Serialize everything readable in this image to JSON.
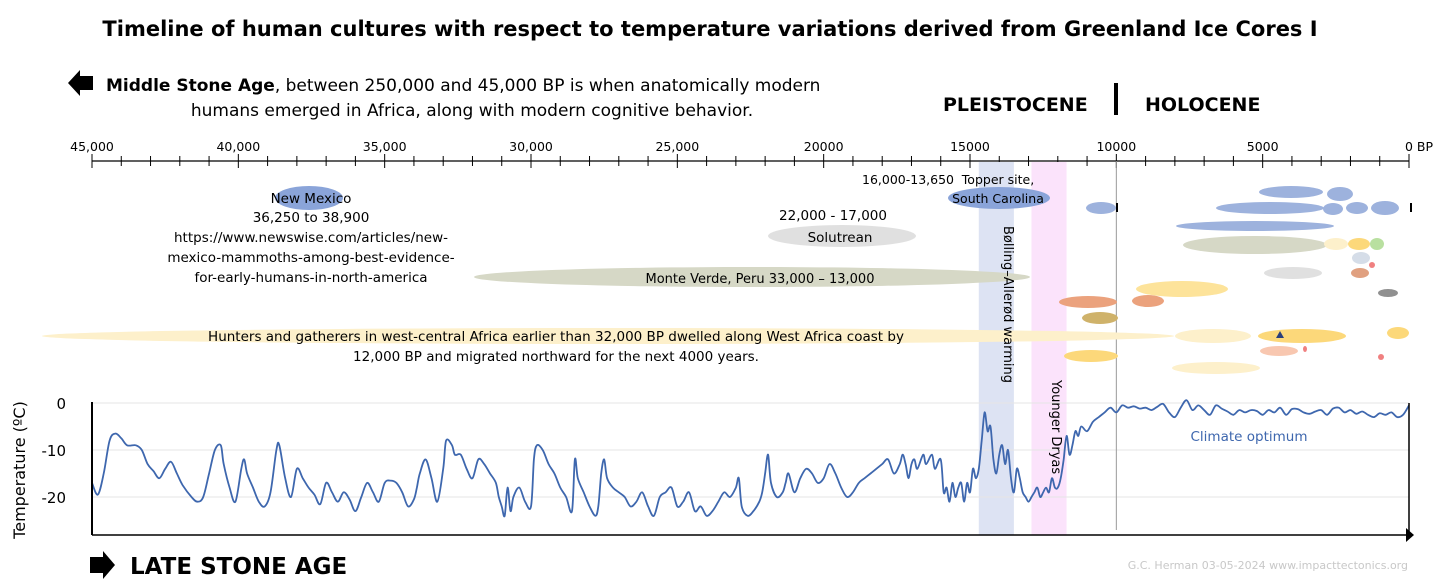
{
  "title": "Timeline of human cultures with respect to temperature variations derived from Greenland Ice Cores I",
  "middle_stone_age": {
    "bold": "Middle Stone Age",
    "rest_line1": ", between 250,000 and 45,000 BP is when anatomically modern",
    "line2": "humans emerged in Africa, along with modern cognitive behavior."
  },
  "epochs": {
    "pleistocene": "PLEISTOCENE",
    "holocene": "HOLOCENE"
  },
  "late_stone_age": "LATE STONE AGE",
  "credit": "G.C. Herman 03-05-2024 www.impacttectonics.org",
  "labels": {
    "new_mexico_1": "New Mexico",
    "new_mexico_2": "36,250 to 38,900",
    "new_mexico_3": "https://www.newswise.com/articles/new-",
    "new_mexico_4": "mexico-mammoths-among-best-evidence-",
    "new_mexico_5": "for-early-humans-in-north-america",
    "topper_range": "16,000-13,650",
    "topper_1": "Topper site,",
    "topper_2": "South Carolina",
    "solutrean_range": "22,000 - 17,000",
    "solutrean": "Solutrean",
    "monte_verde": "Monte Verde, Peru 33,000 – 13,000",
    "hunters_1": "Hunters and gatherers in west-central Africa earlier than 32,000 BP dwelled along West Africa coast by",
    "hunters_2": "12,000 BP and migrated northward for the next 4000 years.",
    "bolling": "Bølling–Allerød warming",
    "younger_dryas": "Younger Dryas",
    "climate_optimum": "Climate optimum"
  },
  "chart_data": {
    "type": "line",
    "title": "Timeline of human cultures with respect to temperature variations derived from Greenland Ice Cores I",
    "xlabel": "",
    "ylabel": "Temperature (ºC)",
    "x_unit": "years BP",
    "x_axis": {
      "range": [
        45000,
        0
      ],
      "ticks": [
        {
          "value": 45000,
          "label": "45,000"
        },
        {
          "value": 40000,
          "label": "40,000"
        },
        {
          "value": 35000,
          "label": "35,000"
        },
        {
          "value": 30000,
          "label": "30,000"
        },
        {
          "value": 25000,
          "label": "25,000"
        },
        {
          "value": 20000,
          "label": "20000"
        },
        {
          "value": 15000,
          "label": "15000"
        },
        {
          "value": 10000,
          "label": "10000"
        },
        {
          "value": 5000,
          "label": "5000"
        },
        {
          "value": 0,
          "label": "0 BP"
        }
      ],
      "minor_step": 1000
    },
    "y_axis": {
      "range": [
        -28,
        2
      ],
      "ticks": [
        {
          "value": 0,
          "label": "0"
        },
        {
          "value": -10,
          "label": "-10"
        },
        {
          "value": -20,
          "label": "-20"
        }
      ]
    },
    "grid": true,
    "bands": [
      {
        "name": "Bølling–Allerød warming",
        "from": 14700,
        "to": 13500,
        "color": "#dde3f3"
      },
      {
        "name": "Younger Dryas",
        "from": 12900,
        "to": 11700,
        "color": "#fbe3fb"
      }
    ],
    "boundary": {
      "value": 10000,
      "from": "PLEISTOCENE",
      "to": "HOLOCENE"
    },
    "series": [
      {
        "color": "#3e67ae",
        "points": [
          [
            45000,
            -17
          ],
          [
            44800,
            -19.5
          ],
          [
            44600,
            -15
          ],
          [
            44400,
            -8
          ],
          [
            44200,
            -6.5
          ],
          [
            44000,
            -7.5
          ],
          [
            43800,
            -9
          ],
          [
            43500,
            -9
          ],
          [
            43300,
            -10
          ],
          [
            43100,
            -13
          ],
          [
            42900,
            -14.5
          ],
          [
            42700,
            -16
          ],
          [
            42500,
            -14
          ],
          [
            42300,
            -12.5
          ],
          [
            42100,
            -15
          ],
          [
            41900,
            -17.5
          ],
          [
            41600,
            -20
          ],
          [
            41400,
            -21
          ],
          [
            41200,
            -20
          ],
          [
            41000,
            -15
          ],
          [
            40800,
            -10
          ],
          [
            40600,
            -9
          ],
          [
            40500,
            -13
          ],
          [
            40300,
            -18
          ],
          [
            40100,
            -21
          ],
          [
            39900,
            -14
          ],
          [
            39800,
            -12
          ],
          [
            39700,
            -15
          ],
          [
            39500,
            -18
          ],
          [
            39300,
            -21
          ],
          [
            39100,
            -22
          ],
          [
            38900,
            -19
          ],
          [
            38700,
            -10
          ],
          [
            38600,
            -9
          ],
          [
            38400,
            -16
          ],
          [
            38200,
            -20
          ],
          [
            38000,
            -14
          ],
          [
            37800,
            -16
          ],
          [
            37600,
            -18
          ],
          [
            37400,
            -19.5
          ],
          [
            37200,
            -21.5
          ],
          [
            37000,
            -17
          ],
          [
            36800,
            -19
          ],
          [
            36600,
            -21
          ],
          [
            36400,
            -19
          ],
          [
            36200,
            -20.5
          ],
          [
            36000,
            -23
          ],
          [
            35800,
            -20
          ],
          [
            35600,
            -17
          ],
          [
            35400,
            -19
          ],
          [
            35200,
            -21
          ],
          [
            35000,
            -17
          ],
          [
            34800,
            -16.5
          ],
          [
            34600,
            -17
          ],
          [
            34400,
            -19
          ],
          [
            34200,
            -22
          ],
          [
            34000,
            -20.5
          ],
          [
            33900,
            -18
          ],
          [
            33800,
            -15
          ],
          [
            33600,
            -12
          ],
          [
            33400,
            -16
          ],
          [
            33200,
            -21
          ],
          [
            33000,
            -14
          ],
          [
            32900,
            -8
          ],
          [
            32700,
            -9
          ],
          [
            32600,
            -11
          ],
          [
            32400,
            -11
          ],
          [
            32200,
            -14
          ],
          [
            32000,
            -16
          ],
          [
            31800,
            -12
          ],
          [
            31600,
            -13
          ],
          [
            31400,
            -15
          ],
          [
            31200,
            -17
          ],
          [
            31100,
            -20
          ],
          [
            31000,
            -22
          ],
          [
            30900,
            -24
          ],
          [
            30800,
            -18
          ],
          [
            30700,
            -23
          ],
          [
            30600,
            -20
          ],
          [
            30400,
            -18
          ],
          [
            30200,
            -21
          ],
          [
            30000,
            -22
          ],
          [
            29900,
            -12
          ],
          [
            29800,
            -9
          ],
          [
            29600,
            -10
          ],
          [
            29400,
            -13
          ],
          [
            29200,
            -15
          ],
          [
            29000,
            -18
          ],
          [
            28800,
            -20
          ],
          [
            28600,
            -23
          ],
          [
            28500,
            -12
          ],
          [
            28400,
            -16
          ],
          [
            28200,
            -19
          ],
          [
            28000,
            -22
          ],
          [
            27800,
            -24
          ],
          [
            27700,
            -22
          ],
          [
            27600,
            -15
          ],
          [
            27500,
            -12
          ],
          [
            27400,
            -16
          ],
          [
            27200,
            -18
          ],
          [
            27000,
            -19
          ],
          [
            26800,
            -20
          ],
          [
            26600,
            -22
          ],
          [
            26400,
            -21
          ],
          [
            26200,
            -19
          ],
          [
            26000,
            -22
          ],
          [
            25800,
            -24
          ],
          [
            25600,
            -20
          ],
          [
            25400,
            -19
          ],
          [
            25200,
            -18
          ],
          [
            25000,
            -22
          ],
          [
            24800,
            -21
          ],
          [
            24600,
            -19
          ],
          [
            24400,
            -23
          ],
          [
            24200,
            -22
          ],
          [
            24000,
            -24
          ],
          [
            23800,
            -23
          ],
          [
            23600,
            -21
          ],
          [
            23400,
            -19
          ],
          [
            23200,
            -20
          ],
          [
            23000,
            -18
          ],
          [
            22900,
            -16
          ],
          [
            22800,
            -22
          ],
          [
            22600,
            -24
          ],
          [
            22400,
            -23
          ],
          [
            22200,
            -21
          ],
          [
            22100,
            -19
          ],
          [
            22000,
            -15
          ],
          [
            21900,
            -11
          ],
          [
            21800,
            -17
          ],
          [
            21600,
            -20
          ],
          [
            21400,
            -19
          ],
          [
            21300,
            -17
          ],
          [
            21200,
            -15
          ],
          [
            21000,
            -19
          ],
          [
            20800,
            -16
          ],
          [
            20600,
            -14
          ],
          [
            20400,
            -15
          ],
          [
            20200,
            -17
          ],
          [
            20000,
            -16
          ],
          [
            19800,
            -13
          ],
          [
            19600,
            -15
          ],
          [
            19400,
            -18
          ],
          [
            19200,
            -20
          ],
          [
            19000,
            -19
          ],
          [
            18800,
            -17
          ],
          [
            18600,
            -16
          ],
          [
            18400,
            -15
          ],
          [
            18200,
            -14
          ],
          [
            18000,
            -13
          ],
          [
            17800,
            -12
          ],
          [
            17600,
            -15
          ],
          [
            17400,
            -13
          ],
          [
            17300,
            -11
          ],
          [
            17200,
            -13
          ],
          [
            17100,
            -16
          ],
          [
            17000,
            -13
          ],
          [
            16900,
            -12
          ],
          [
            16800,
            -14
          ],
          [
            16600,
            -11
          ],
          [
            16500,
            -13
          ],
          [
            16300,
            -11
          ],
          [
            16200,
            -14
          ],
          [
            16000,
            -12
          ],
          [
            15900,
            -19
          ],
          [
            15800,
            -18
          ],
          [
            15700,
            -21
          ],
          [
            15600,
            -17
          ],
          [
            15500,
            -20
          ],
          [
            15400,
            -18
          ],
          [
            15300,
            -17
          ],
          [
            15200,
            -21
          ],
          [
            15100,
            -17
          ],
          [
            15000,
            -19
          ],
          [
            14900,
            -14
          ],
          [
            14800,
            -16
          ],
          [
            14700,
            -14
          ],
          [
            14600,
            -8
          ],
          [
            14500,
            -2
          ],
          [
            14400,
            -6
          ],
          [
            14300,
            -5
          ],
          [
            14200,
            -12
          ],
          [
            14100,
            -15
          ],
          [
            14000,
            -11
          ],
          [
            13900,
            -9
          ],
          [
            13800,
            -13
          ],
          [
            13700,
            -10
          ],
          [
            13600,
            -16
          ],
          [
            13500,
            -19
          ],
          [
            13400,
            -14
          ],
          [
            13300,
            -16
          ],
          [
            13200,
            -19
          ],
          [
            13100,
            -20
          ],
          [
            13000,
            -21
          ],
          [
            12900,
            -20
          ],
          [
            12800,
            -19
          ],
          [
            12700,
            -18
          ],
          [
            12600,
            -20
          ],
          [
            12500,
            -19
          ],
          [
            12400,
            -18
          ],
          [
            12300,
            -19
          ],
          [
            12200,
            -16
          ],
          [
            12100,
            -18
          ],
          [
            12000,
            -18
          ],
          [
            11900,
            -16
          ],
          [
            11800,
            -12
          ],
          [
            11700,
            -7
          ],
          [
            11600,
            -11
          ],
          [
            11500,
            -9
          ],
          [
            11400,
            -6
          ],
          [
            11300,
            -7
          ],
          [
            11200,
            -5
          ],
          [
            11000,
            -6
          ],
          [
            10800,
            -4
          ],
          [
            10600,
            -3
          ],
          [
            10400,
            -2
          ],
          [
            10200,
            -1
          ],
          [
            10000,
            -2
          ],
          [
            9800,
            -0.5
          ],
          [
            9600,
            -1
          ],
          [
            9400,
            -0.7
          ],
          [
            9200,
            -1.2
          ],
          [
            9000,
            -1
          ],
          [
            8800,
            -1.5
          ],
          [
            8600,
            -0.8
          ],
          [
            8400,
            -0.2
          ],
          [
            8200,
            -2
          ],
          [
            8000,
            -3
          ],
          [
            7800,
            -1
          ],
          [
            7600,
            0.6
          ],
          [
            7400,
            -1.5
          ],
          [
            7200,
            -0.5
          ],
          [
            7000,
            -1.5
          ],
          [
            6800,
            -2.5
          ],
          [
            6600,
            -0.5
          ],
          [
            6400,
            -1.2
          ],
          [
            6200,
            -1.8
          ],
          [
            6000,
            -2.5
          ],
          [
            5800,
            -1.5
          ],
          [
            5600,
            -2
          ],
          [
            5400,
            -1.5
          ],
          [
            5200,
            -1.7
          ],
          [
            5000,
            -2.5
          ],
          [
            4800,
            -1.5
          ],
          [
            4600,
            -2
          ],
          [
            4400,
            -1
          ],
          [
            4200,
            -2.5
          ],
          [
            4000,
            -1.3
          ],
          [
            3800,
            -1.3
          ],
          [
            3600,
            -2
          ],
          [
            3400,
            -2.3
          ],
          [
            3200,
            -1.8
          ],
          [
            3000,
            -1.5
          ],
          [
            2800,
            -2.5
          ],
          [
            2600,
            -1.2
          ],
          [
            2400,
            -1
          ],
          [
            2200,
            -2
          ],
          [
            2000,
            -1.5
          ],
          [
            1800,
            -2.3
          ],
          [
            1600,
            -1.8
          ],
          [
            1400,
            -2.5
          ],
          [
            1200,
            -3
          ],
          [
            1000,
            -2.2
          ],
          [
            800,
            -2.5
          ],
          [
            600,
            -2
          ],
          [
            400,
            -3
          ],
          [
            200,
            -2.5
          ],
          [
            0,
            -0.5
          ]
        ]
      }
    ]
  }
}
